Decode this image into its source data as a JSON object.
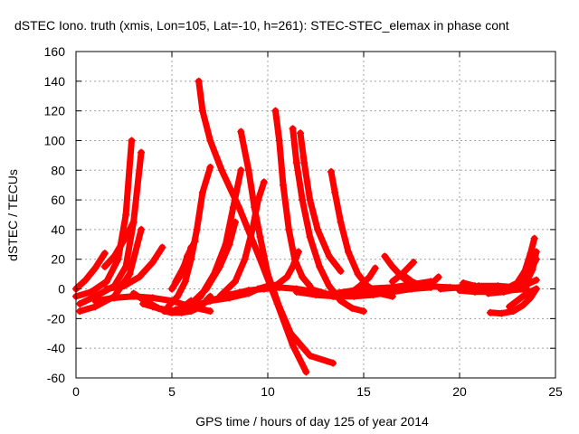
{
  "chart_data": {
    "type": "line",
    "title": "dSTEC Iono. truth (xmis, Lon=105, Lat=-10, h=261): STEC-STEC_elemax in phase cont",
    "xlabel": "GPS time / hours of day 125 of year 2014",
    "ylabel": "dSTEC  / TECUs",
    "xlim": [
      0,
      25
    ],
    "ylim": [
      -60,
      160
    ],
    "x_ticks": [
      0,
      5,
      10,
      15,
      20,
      25
    ],
    "y_ticks": [
      -60,
      -40,
      -20,
      0,
      20,
      40,
      60,
      80,
      100,
      120,
      140,
      160
    ],
    "grid": true,
    "line_color": "#ff0000",
    "marker": "plus",
    "series": [
      {
        "x": [
          0.0,
          0.5,
          1.0,
          1.5
        ],
        "y": [
          0.0,
          6,
          14,
          24
        ]
      },
      {
        "x": [
          0.0,
          0.8,
          1.6,
          2.2,
          2.6,
          2.9
        ],
        "y": [
          -5,
          -2,
          5,
          20,
          50,
          100
        ]
      },
      {
        "x": [
          0.2,
          1.0,
          2.0,
          2.6,
          3.0,
          3.4
        ],
        "y": [
          -10,
          -5,
          2,
          15,
          45,
          92
        ]
      },
      {
        "x": [
          0.2,
          1.0,
          2.0,
          2.8,
          3.4
        ],
        "y": [
          -15,
          -12,
          -5,
          10,
          40
        ]
      },
      {
        "x": [
          1.5,
          2.0,
          2.6,
          3.0
        ],
        "y": [
          15,
          22,
          35,
          45
        ]
      },
      {
        "x": [
          1.6,
          2.5,
          3.3,
          4.0,
          4.5
        ],
        "y": [
          0,
          2,
          8,
          18,
          28
        ]
      },
      {
        "x": [
          1.0,
          2.0,
          3.0,
          4.0,
          5.0,
          6.0,
          7.0
        ],
        "y": [
          -8,
          -6,
          -5,
          -6,
          -8,
          -12,
          -15
        ]
      },
      {
        "x": [
          3.0,
          3.6,
          4.3,
          5.0,
          5.5,
          6.0
        ],
        "y": [
          -3,
          -8,
          -13,
          -15,
          -13,
          -8
        ]
      },
      {
        "x": [
          3.5,
          4.0,
          4.5,
          5.0,
          5.5,
          5.8
        ],
        "y": [
          -10,
          -12,
          -14,
          -15,
          -14,
          -10
        ]
      },
      {
        "x": [
          4.6,
          5.0,
          5.5,
          6.0,
          6.5,
          7.0
        ],
        "y": [
          -15,
          -16,
          -16,
          -15,
          -12,
          -5
        ]
      },
      {
        "x": [
          4.8,
          5.3,
          5.7,
          6.0,
          6.3,
          6.6,
          7.0
        ],
        "y": [
          -12,
          -5,
          5,
          20,
          40,
          65,
          82
        ]
      },
      {
        "x": [
          5.0,
          5.5,
          5.8,
          6.2
        ],
        "y": [
          0,
          10,
          22,
          32
        ]
      },
      {
        "x": [
          5.2,
          5.5,
          5.8,
          6.0
        ],
        "y": [
          5,
          12,
          20,
          28
        ]
      },
      {
        "x": [
          6.4,
          6.6,
          7.0,
          7.6,
          8.5,
          9.6,
          10.5,
          11.3,
          12.0
        ],
        "y": [
          140,
          120,
          100,
          80,
          55,
          20,
          -10,
          -38,
          -56
        ]
      },
      {
        "x": [
          5.2,
          6.0,
          7.0,
          8.0,
          9.0,
          9.8,
          10.6,
          11.5,
          12.5,
          13.4
        ],
        "y": [
          -14,
          -12,
          -8,
          -4,
          -1,
          0,
          1,
          0,
          -2,
          -5
        ]
      },
      {
        "x": [
          5.8,
          6.5,
          7.2,
          7.8,
          8.2,
          8.6
        ],
        "y": [
          -12,
          -5,
          10,
          30,
          55,
          80
        ]
      },
      {
        "x": [
          6.0,
          6.8,
          7.5,
          8.0,
          8.3
        ],
        "y": [
          -10,
          0,
          15,
          30,
          45
        ]
      },
      {
        "x": [
          8.6,
          9.0,
          9.3,
          9.6,
          10.0,
          10.6,
          11.2,
          12.2,
          13.4
        ],
        "y": [
          106,
          80,
          55,
          35,
          10,
          -12,
          -30,
          -45,
          -50
        ]
      },
      {
        "x": [
          7.5,
          8.3,
          8.8,
          9.2,
          9.5,
          9.8
        ],
        "y": [
          -5,
          5,
          20,
          40,
          60,
          72
        ]
      },
      {
        "x": [
          7.0,
          8.0,
          9.0,
          9.5,
          10.0
        ],
        "y": [
          -8,
          -6,
          -3,
          0,
          2
        ]
      },
      {
        "x": [
          9.5,
          10.0,
          10.5,
          11.0,
          11.3,
          11.6
        ],
        "y": [
          0,
          1,
          3,
          8,
          15,
          25
        ]
      },
      {
        "x": [
          10.4,
          10.6,
          10.8,
          11.1,
          11.4,
          11.8,
          12.2
        ],
        "y": [
          120,
          100,
          70,
          40,
          20,
          8,
          2
        ]
      },
      {
        "x": [
          11.3,
          11.5,
          11.8,
          12.2,
          12.7,
          13.2,
          13.8,
          14.4,
          15.0
        ],
        "y": [
          108,
          85,
          60,
          35,
          15,
          2,
          -8,
          -13,
          -15
        ]
      },
      {
        "x": [
          11.7,
          11.9,
          12.2,
          12.6,
          13.2,
          13.8
        ],
        "y": [
          105,
          85,
          60,
          40,
          22,
          12
        ]
      },
      {
        "x": [
          13.3,
          13.5,
          13.8,
          14.2,
          14.7,
          15.2,
          15.8,
          16.5
        ],
        "y": [
          79,
          65,
          45,
          25,
          10,
          2,
          -3,
          -5
        ]
      },
      {
        "x": [
          12.2,
          13.0,
          13.7,
          14.3,
          14.8,
          15.3,
          15.6
        ],
        "y": [
          0,
          -3,
          -5,
          -3,
          2,
          8,
          14
        ]
      },
      {
        "x": [
          11.5,
          12.5,
          13.5,
          14.5,
          15.5,
          16.5,
          17.5,
          18.5
        ],
        "y": [
          -2,
          -4,
          -5,
          -5,
          -4,
          -2,
          0,
          1
        ]
      },
      {
        "x": [
          13.5,
          14.5,
          15.5,
          16.5,
          17.5,
          18.5
        ],
        "y": [
          -3,
          -1,
          0,
          1,
          3,
          5
        ]
      },
      {
        "x": [
          16.1,
          16.5,
          17.0,
          17.5,
          18.0
        ],
        "y": [
          22,
          15,
          8,
          3,
          1
        ]
      },
      {
        "x": [
          16.5,
          17.0,
          17.3,
          17.6
        ],
        "y": [
          5,
          10,
          14,
          18
        ]
      },
      {
        "x": [
          17.0,
          17.5,
          18.0,
          18.5,
          18.9
        ],
        "y": [
          10,
          5,
          2,
          3,
          8
        ]
      },
      {
        "x": [
          15.0,
          16.5,
          18.0,
          19.5,
          21.0,
          22.5,
          23.5
        ],
        "y": [
          0,
          1,
          2,
          1,
          0,
          -1,
          0
        ]
      },
      {
        "x": [
          19.0,
          20.0,
          21.0,
          22.0,
          23.0,
          23.5
        ],
        "y": [
          0,
          1,
          2,
          2,
          1,
          0
        ]
      },
      {
        "x": [
          20.2,
          20.8,
          21.3,
          21.8
        ],
        "y": [
          4,
          2,
          0,
          -2
        ]
      },
      {
        "x": [
          20.0,
          20.8,
          21.6,
          22.4,
          23.0,
          23.4,
          23.7,
          23.9
        ],
        "y": [
          -1,
          -2,
          -2,
          0,
          4,
          12,
          24,
          34
        ]
      },
      {
        "x": [
          21.5,
          22.3,
          23.0,
          23.5,
          23.8,
          24.0
        ],
        "y": [
          -3,
          -2,
          0,
          5,
          13,
          25
        ]
      },
      {
        "x": [
          21.8,
          22.5,
          23.1,
          23.6,
          24.0
        ],
        "y": [
          -1,
          0,
          3,
          10,
          20
        ]
      },
      {
        "x": [
          22.0,
          22.5,
          23.0,
          23.5,
          24.0
        ],
        "y": [
          0,
          0,
          1,
          3,
          6
        ]
      },
      {
        "x": [
          21.6,
          22.2,
          22.8,
          23.3,
          23.7,
          24.0
        ],
        "y": [
          -16,
          -16.5,
          -15,
          -11,
          -6,
          0
        ]
      },
      {
        "x": [
          22.6,
          23.0,
          23.5,
          24.0
        ],
        "y": [
          -12,
          -8,
          -3,
          0
        ]
      }
    ]
  }
}
